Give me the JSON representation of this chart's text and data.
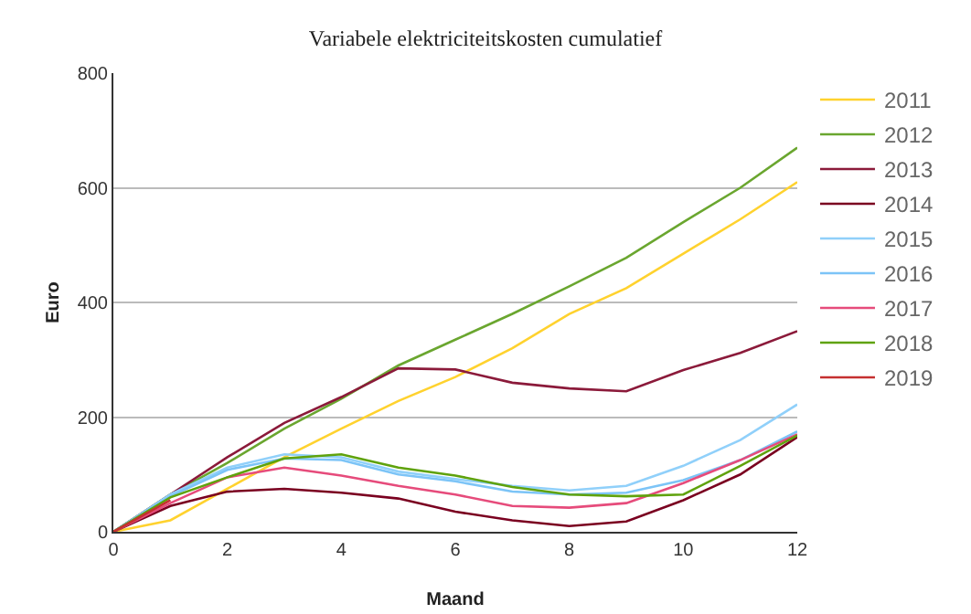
{
  "chart_data": {
    "type": "line",
    "title": "Variabele elektriciteitskosten cumulatief",
    "xlabel": "Maand",
    "ylabel": "Euro",
    "x": [
      0,
      1,
      2,
      3,
      4,
      5,
      6,
      7,
      8,
      9,
      10,
      11,
      12
    ],
    "xlim": [
      0,
      12
    ],
    "xticks": [
      0,
      2,
      4,
      6,
      8,
      10,
      12
    ],
    "ylim": [
      0,
      800
    ],
    "yticks": [
      0,
      200,
      400,
      600,
      800
    ],
    "grid": "y",
    "legend": "right",
    "series": [
      {
        "name": "2011",
        "color": "#ffd22e",
        "values": [
          0,
          20,
          75,
          130,
          180,
          228,
          270,
          320,
          380,
          425,
          485,
          545,
          610
        ]
      },
      {
        "name": "2012",
        "color": "#6aa62f",
        "values": [
          0,
          65,
          120,
          180,
          232,
          290,
          335,
          380,
          428,
          478,
          540,
          600,
          670
        ]
      },
      {
        "name": "2013",
        "color": "#8b1a3a",
        "values": [
          0,
          65,
          130,
          190,
          235,
          285,
          283,
          260,
          250,
          245,
          282,
          312,
          350
        ]
      },
      {
        "name": "2014",
        "color": "#7a0020",
        "values": [
          0,
          45,
          70,
          75,
          68,
          58,
          35,
          20,
          10,
          18,
          55,
          100,
          165
        ]
      },
      {
        "name": "2015",
        "color": "#90d0fa",
        "values": [
          0,
          65,
          112,
          135,
          130,
          105,
          92,
          80,
          72,
          80,
          115,
          160,
          222
        ]
      },
      {
        "name": "2016",
        "color": "#7cc4f7",
        "values": [
          0,
          62,
          108,
          128,
          125,
          100,
          88,
          70,
          65,
          68,
          90,
          125,
          175
        ]
      },
      {
        "name": "2017",
        "color": "#e64b7b",
        "values": [
          0,
          50,
          95,
          112,
          98,
          80,
          65,
          45,
          42,
          50,
          85,
          125,
          170
        ]
      },
      {
        "name": "2018",
        "color": "#5fa20c",
        "values": [
          0,
          60,
          95,
          128,
          135,
          112,
          98,
          78,
          65,
          62,
          65,
          115,
          168
        ]
      },
      {
        "name": "2019",
        "color": "#c53030",
        "values": [
          0,
          55,
          null,
          null,
          null,
          null,
          null,
          null,
          null,
          null,
          null,
          null,
          null
        ]
      }
    ]
  }
}
